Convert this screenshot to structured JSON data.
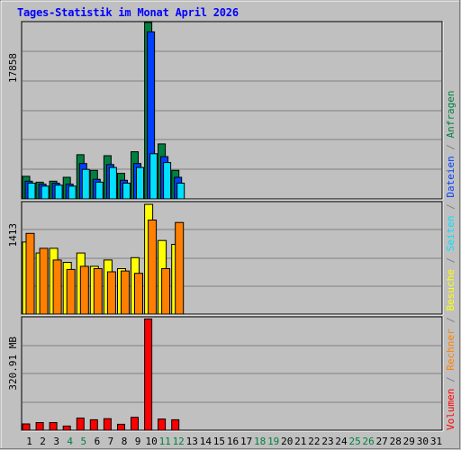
{
  "chart_data": {
    "type": "bar",
    "title": "Tages-Statistik im Monat April 2026",
    "categories": [
      "1",
      "2",
      "3",
      "4",
      "5",
      "6",
      "7",
      "8",
      "9",
      "10",
      "11",
      "12",
      "13",
      "14",
      "15",
      "16",
      "17",
      "18",
      "19",
      "20",
      "21",
      "22",
      "23",
      "24",
      "25",
      "26",
      "27",
      "28",
      "29",
      "30",
      "31"
    ],
    "weekend_days": [
      "4",
      "5",
      "11",
      "12",
      "18",
      "19",
      "25",
      "26"
    ],
    "panels": [
      {
        "name": "top",
        "ylabel": "17858",
        "ylim": [
          0,
          17858
        ],
        "grid": true,
        "series": [
          {
            "name": "Anfragen",
            "color": "#008040",
            "values": [
              2300,
              1700,
              1800,
              2200,
              4500,
              2900,
              4400,
              2600,
              4800,
              18000,
              5600,
              2900,
              0,
              0,
              0,
              0,
              0,
              0,
              0,
              0,
              0,
              0,
              0,
              0,
              0,
              0,
              0,
              0,
              0,
              0,
              0
            ]
          },
          {
            "name": "Dateien",
            "color": "#0040ff",
            "values": [
              1800,
              1500,
              1600,
              1500,
              3600,
              2000,
              3500,
              1900,
              3600,
              17000,
              4300,
              2200,
              0,
              0,
              0,
              0,
              0,
              0,
              0,
              0,
              0,
              0,
              0,
              0,
              0,
              0,
              0,
              0,
              0,
              0,
              0
            ]
          },
          {
            "name": "Seiten",
            "color": "#00e0ff",
            "values": [
              1600,
              1300,
              1400,
              1300,
              3000,
              1700,
              3200,
              1600,
              3200,
              4600,
              3700,
              1600,
              0,
              0,
              0,
              0,
              0,
              0,
              0,
              0,
              0,
              0,
              0,
              0,
              0,
              0,
              0,
              0,
              0,
              0,
              0
            ]
          }
        ]
      },
      {
        "name": "middle",
        "ylabel": "1413",
        "ylim": [
          0,
          1413
        ],
        "grid": true,
        "series": [
          {
            "name": "Besuche",
            "color": "#ffff00",
            "values": [
              920,
              780,
              840,
              660,
              780,
              610,
              690,
              580,
              720,
              1400,
              940,
              890,
              0,
              0,
              0,
              0,
              0,
              0,
              0,
              0,
              0,
              0,
              0,
              0,
              0,
              0,
              0,
              0,
              0,
              0,
              0
            ]
          },
          {
            "name": "Rechner",
            "color": "#ff8000",
            "values": [
              1030,
              840,
              690,
              570,
              610,
              580,
              540,
              550,
              520,
              1200,
              580,
              1170,
              0,
              0,
              0,
              0,
              0,
              0,
              0,
              0,
              0,
              0,
              0,
              0,
              0,
              0,
              0,
              0,
              0,
              0,
              0
            ]
          }
        ]
      },
      {
        "name": "bottom",
        "ylabel": "320.91 MB",
        "ylim": [
          0,
          320.91
        ],
        "grid": true,
        "series": [
          {
            "name": "Volumen",
            "color": "#ff0000",
            "values": [
              18,
              22,
              22,
              12,
              35,
              30,
              33,
              17,
              37,
              320,
              32,
              30,
              0,
              0,
              0,
              0,
              0,
              0,
              0,
              0,
              0,
              0,
              0,
              0,
              0,
              0,
              0,
              0,
              0,
              0,
              0
            ]
          }
        ]
      }
    ],
    "right_legend": [
      {
        "text": "Volumen",
        "color": "#ff0000"
      },
      {
        "text": " / ",
        "color": "#808080"
      },
      {
        "text": "Rechner",
        "color": "#ff8000"
      },
      {
        "text": " / ",
        "color": "#808080"
      },
      {
        "text": "Besuche",
        "color": "#ffff00"
      },
      {
        "text": " / ",
        "color": "#808080"
      },
      {
        "text": "Seiten",
        "color": "#00e0ff"
      },
      {
        "text": " / ",
        "color": "#808080"
      },
      {
        "text": "Dateien",
        "color": "#0040ff"
      },
      {
        "text": " / ",
        "color": "#808080"
      },
      {
        "text": "Anfragen",
        "color": "#008040"
      }
    ],
    "colors": {
      "background": "#c0c0c0",
      "title": "#0000ff",
      "weekday_tick": "#000000",
      "weekend_tick": "#008040",
      "grid": "#808080"
    }
  }
}
